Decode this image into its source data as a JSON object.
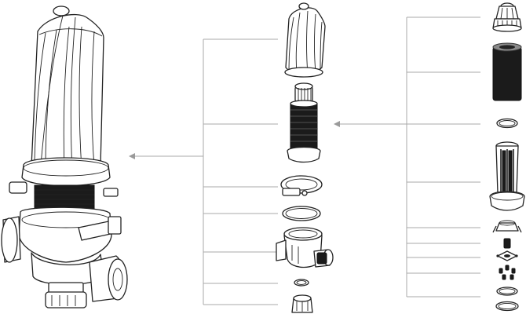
{
  "diagram": {
    "kind": "exploded-view",
    "colors": {
      "line": "#a9a9a9",
      "ink": "#222222",
      "background": "#ffffff"
    },
    "groups": [
      {
        "id": "assembled-filter",
        "parts": [
          "assembled-filter"
        ]
      },
      {
        "id": "main-components",
        "parts": [
          "filter-cover",
          "disc-cartridge",
          "clamp",
          "o-ring",
          "filter-body",
          "small-o-ring",
          "drain-nut"
        ]
      },
      {
        "id": "cartridge-components",
        "parts": [
          "cartridge-cap",
          "disc-stack",
          "cartridge-o-ring",
          "spine",
          "spring-cone",
          "small-stem",
          "hub",
          "pins",
          "o-ring-1",
          "o-ring-2"
        ]
      }
    ]
  }
}
